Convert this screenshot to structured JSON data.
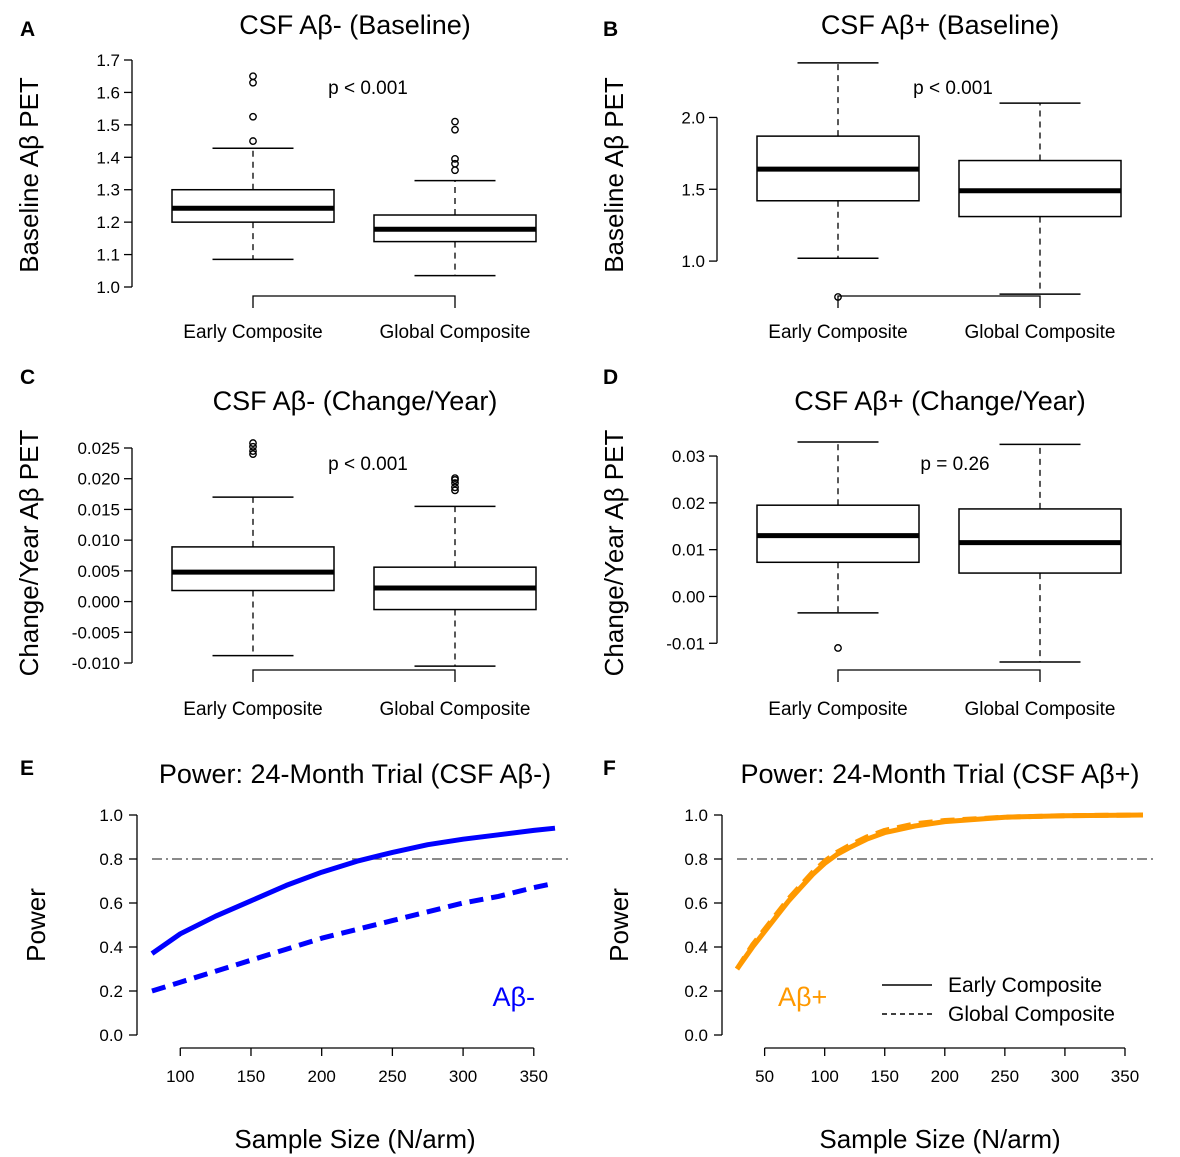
{
  "figure": {
    "panels": [
      {
        "letter": "A"
      },
      {
        "letter": "B"
      },
      {
        "letter": "C"
      },
      {
        "letter": "D"
      },
      {
        "letter": "E"
      },
      {
        "letter": "F"
      }
    ]
  },
  "legend": {
    "solid_label": "Early Composite",
    "dashed_label": "Global Composite"
  },
  "chart_data": [
    {
      "type": "boxplot",
      "panel": "A",
      "title": "CSF Aβ- (Baseline)",
      "ylabel": "Baseline  Aβ PET",
      "ylim": [
        1.0,
        1.7
      ],
      "yticks": [
        1.0,
        1.1,
        1.2,
        1.3,
        1.4,
        1.5,
        1.6,
        1.7
      ],
      "ytick_labels": [
        "1.0",
        "1.1",
        "1.2",
        "1.3",
        "1.4",
        "1.5",
        "1.6",
        "1.7"
      ],
      "categories": [
        "Early Composite",
        "Global Composite"
      ],
      "boxes": [
        {
          "whisker_low": 1.085,
          "q1": 1.2,
          "median": 1.243,
          "q3": 1.3,
          "whisker_high": 1.428,
          "outliers": [
            1.45,
            1.525,
            1.63,
            1.65
          ]
        },
        {
          "whisker_low": 1.035,
          "q1": 1.14,
          "median": 1.178,
          "q3": 1.222,
          "whisker_high": 1.328,
          "outliers": [
            1.36,
            1.38,
            1.395,
            1.485,
            1.51
          ]
        }
      ],
      "annotation": "p < 0.001"
    },
    {
      "type": "boxplot",
      "panel": "B",
      "title": "CSF Aβ+ (Baseline)",
      "ylabel": "Baseline  Aβ PET",
      "ylim": [
        0.75,
        2.4
      ],
      "yticks": [
        1.0,
        1.5,
        2.0
      ],
      "ytick_labels": [
        "1.0",
        "1.5",
        "2.0"
      ],
      "categories": [
        "Early Composite",
        "Global Composite"
      ],
      "boxes": [
        {
          "whisker_low": 1.02,
          "q1": 1.42,
          "median": 1.64,
          "q3": 1.87,
          "whisker_high": 2.38,
          "outliers": [
            0.75
          ]
        },
        {
          "whisker_low": 0.77,
          "q1": 1.31,
          "median": 1.49,
          "q3": 1.7,
          "whisker_high": 2.1,
          "outliers": []
        }
      ],
      "annotation": "p < 0.001"
    },
    {
      "type": "boxplot",
      "panel": "C",
      "title": "CSF Aβ- (Change/Year)",
      "ylabel": "Change/Year  Aβ PET",
      "ylim": [
        -0.01,
        0.025
      ],
      "yticks": [
        -0.01,
        -0.005,
        0.0,
        0.005,
        0.01,
        0.015,
        0.02,
        0.025
      ],
      "ytick_labels": [
        "-0.010",
        "-0.005",
        "0.000",
        "0.005",
        "0.010",
        "0.015",
        "0.020",
        "0.025"
      ],
      "categories": [
        "Early Composite",
        "Global Composite"
      ],
      "boxes": [
        {
          "whisker_low": -0.0088,
          "q1": 0.0018,
          "median": 0.0048,
          "q3": 0.0089,
          "whisker_high": 0.017,
          "outliers": [
            0.024,
            0.0245,
            0.0252,
            0.0258
          ]
        },
        {
          "whisker_low": -0.0105,
          "q1": -0.0013,
          "median": 0.0022,
          "q3": 0.0056,
          "whisker_high": 0.0155,
          "outliers": [
            0.0181,
            0.0186,
            0.0193,
            0.0198,
            0.0201
          ]
        }
      ],
      "annotation": "p < 0.001"
    },
    {
      "type": "boxplot",
      "panel": "D",
      "title": "CSF Aβ+ (Change/Year)",
      "ylabel": "Change/Year  Aβ PET",
      "ylim": [
        -0.014,
        0.033
      ],
      "yticks": [
        -0.01,
        0.0,
        0.01,
        0.02,
        0.03
      ],
      "ytick_labels": [
        "-0.01",
        "0.00",
        "0.01",
        "0.02",
        "0.03"
      ],
      "categories": [
        "Early Composite",
        "Global Composite"
      ],
      "boxes": [
        {
          "whisker_low": -0.0035,
          "q1": 0.0073,
          "median": 0.013,
          "q3": 0.0195,
          "whisker_high": 0.033,
          "outliers": [
            -0.011
          ]
        },
        {
          "whisker_low": -0.014,
          "q1": 0.005,
          "median": 0.0115,
          "q3": 0.0187,
          "whisker_high": 0.0325,
          "outliers": []
        }
      ],
      "annotation": "p = 0.26"
    },
    {
      "type": "line",
      "panel": "E",
      "title": "Power: 24-Month Trial (CSF Aβ-)",
      "xlabel": "Sample Size (N/arm)",
      "ylabel": "Power",
      "xlim": [
        80,
        365
      ],
      "ylim": [
        0.0,
        1.0
      ],
      "xticks": [
        100,
        150,
        200,
        250,
        300,
        350
      ],
      "yticks": [
        0.0,
        0.2,
        0.4,
        0.6,
        0.8,
        1.0
      ],
      "reference_line": 0.8,
      "color": "#0000ff",
      "annotation": "Aβ-",
      "series": [
        {
          "style": "solid",
          "x": [
            80,
            100,
            125,
            150,
            175,
            200,
            225,
            250,
            275,
            300,
            325,
            350,
            365
          ],
          "y": [
            0.37,
            0.46,
            0.54,
            0.61,
            0.68,
            0.74,
            0.79,
            0.83,
            0.865,
            0.89,
            0.91,
            0.93,
            0.94
          ]
        },
        {
          "style": "dashed",
          "x": [
            80,
            100,
            125,
            150,
            175,
            200,
            225,
            250,
            275,
            300,
            325,
            350,
            365
          ],
          "y": [
            0.2,
            0.24,
            0.29,
            0.34,
            0.39,
            0.44,
            0.48,
            0.52,
            0.56,
            0.6,
            0.63,
            0.67,
            0.69
          ]
        }
      ]
    },
    {
      "type": "line",
      "panel": "F",
      "title": "Power: 24-Month Trial (CSF Aβ+)",
      "xlabel": "Sample Size (N/arm)",
      "ylabel": "Power",
      "xlim": [
        27,
        365
      ],
      "ylim": [
        0.0,
        1.0
      ],
      "xticks": [
        50,
        100,
        150,
        200,
        250,
        300,
        350
      ],
      "yticks": [
        0.0,
        0.2,
        0.4,
        0.6,
        0.8,
        1.0
      ],
      "reference_line": 0.8,
      "color": "#ff9900",
      "annotation": "Aβ+",
      "series": [
        {
          "style": "solid",
          "x": [
            27,
            40,
            50,
            60,
            70,
            80,
            90,
            100,
            110,
            120,
            135,
            150,
            175,
            200,
            250,
            300,
            365
          ],
          "y": [
            0.3,
            0.4,
            0.47,
            0.54,
            0.61,
            0.67,
            0.73,
            0.78,
            0.82,
            0.85,
            0.89,
            0.92,
            0.95,
            0.97,
            0.99,
            0.997,
            1.0
          ]
        },
        {
          "style": "dashed",
          "x": [
            27,
            40,
            50,
            60,
            70,
            80,
            90,
            100,
            110,
            120,
            135,
            150,
            175,
            200,
            250,
            300,
            365
          ],
          "y": [
            0.3,
            0.41,
            0.48,
            0.55,
            0.62,
            0.68,
            0.74,
            0.79,
            0.83,
            0.86,
            0.9,
            0.93,
            0.96,
            0.975,
            0.99,
            0.997,
            1.0
          ]
        }
      ]
    }
  ]
}
